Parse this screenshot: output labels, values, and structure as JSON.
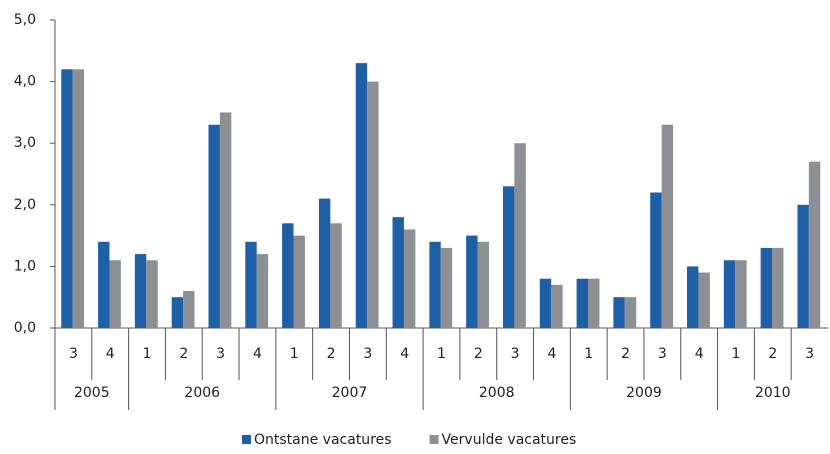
{
  "chart_data": {
    "type": "bar",
    "categories": [
      "3",
      "4",
      "1",
      "2",
      "3",
      "4",
      "1",
      "2",
      "3",
      "4",
      "1",
      "2",
      "3",
      "4",
      "1",
      "2",
      "3",
      "4",
      "1",
      "2",
      "3"
    ],
    "x_groups": [
      "2005",
      "2006",
      "2007",
      "2008",
      "2009",
      "2010"
    ],
    "series": [
      {
        "name": "Ontstane vacatures",
        "color": "#1f5fa6",
        "values": [
          4.2,
          1.4,
          1.2,
          0.5,
          3.3,
          1.4,
          1.7,
          2.1,
          4.3,
          1.8,
          1.4,
          1.5,
          2.3,
          0.8,
          0.8,
          0.5,
          2.2,
          1.0,
          1.1,
          1.3,
          2.0
        ]
      },
      {
        "name": "Vervulde vacatures",
        "color": "#8c8f93",
        "values": [
          4.2,
          1.1,
          1.1,
          0.6,
          3.5,
          1.2,
          1.5,
          1.7,
          4.0,
          1.6,
          1.3,
          1.4,
          3.0,
          0.7,
          0.8,
          0.5,
          3.3,
          0.9,
          1.1,
          1.3,
          2.7
        ]
      }
    ],
    "ylim": [
      0,
      5
    ],
    "yticks": [
      {
        "value": 0,
        "label": "0,0"
      },
      {
        "value": 1,
        "label": "1,0"
      },
      {
        "value": 2,
        "label": "2,0"
      },
      {
        "value": 3,
        "label": "3,0"
      },
      {
        "value": 4,
        "label": "4,0"
      },
      {
        "value": 5,
        "label": "5,0"
      }
    ],
    "legend": "bottom"
  }
}
